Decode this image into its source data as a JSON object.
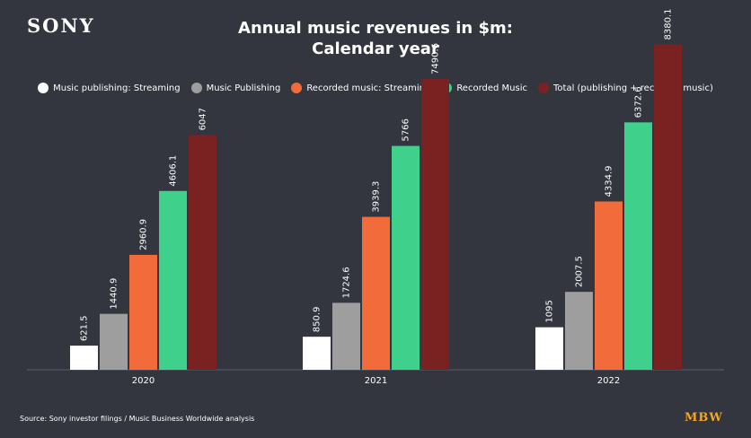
{
  "logo": "SONY",
  "title_line1": "Annual music revenues in $m:",
  "title_line2": "Calendar year",
  "source": "Source: Sony investor filings / Music Business Worldwide analysis",
  "brand": {
    "text": "MBW",
    "color": "#f5a623"
  },
  "chart_data": {
    "type": "bar",
    "title": "Annual music revenues in $m: Calendar year",
    "xlabel": "",
    "ylabel": "",
    "ylim": [
      0,
      8600
    ],
    "grid": false,
    "legend_position": "top",
    "categories": [
      "2020",
      "2021",
      "2022"
    ],
    "series": [
      {
        "name": "Music publishing: Streaming",
        "color": "#ffffff",
        "values": [
          621.5,
          850.9,
          1095
        ],
        "labels": [
          "621.5",
          "850.9",
          "1095"
        ]
      },
      {
        "name": "Music Publishing",
        "color": "#9e9e9e",
        "values": [
          1440.9,
          1724.6,
          2007.5
        ],
        "labels": [
          "1440.9",
          "1724.6",
          "2007.5"
        ]
      },
      {
        "name": "Recorded music: Streaming",
        "color": "#f26c3b",
        "values": [
          2960.9,
          3939.3,
          4334.9
        ],
        "labels": [
          "2960.9",
          "3939.3",
          "4334.9"
        ]
      },
      {
        "name": "Recorded Music",
        "color": "#3fd08b",
        "values": [
          4606.1,
          5766,
          6372.6
        ],
        "labels": [
          "4606.1",
          "5766",
          "6372.6"
        ]
      },
      {
        "name": "Total (publishing + recorded music)",
        "color": "#7a2222",
        "values": [
          6047,
          7490.6,
          8380.1
        ],
        "labels": [
          "6047",
          "7490.6",
          "8380.1"
        ]
      }
    ]
  }
}
